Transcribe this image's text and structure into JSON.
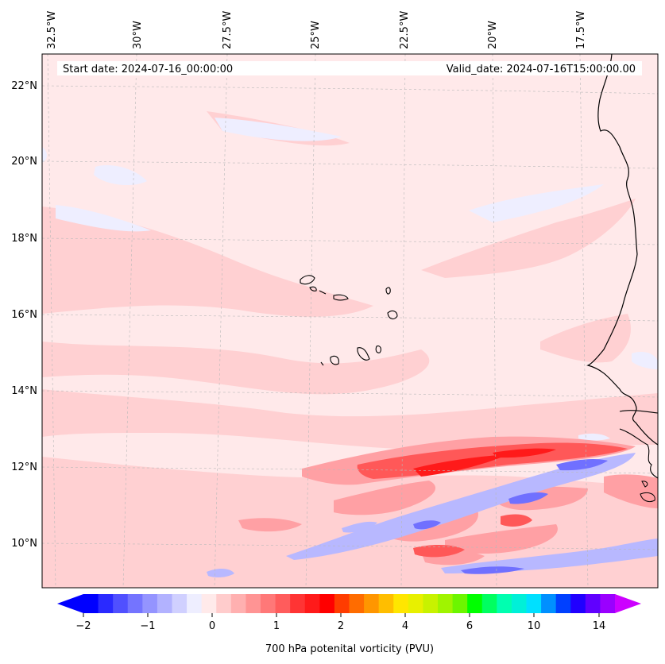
{
  "map": {
    "start_date_text": "Start date: 2024-07-16_00:00:00",
    "valid_date_text": "Valid_date: 2024-07-16T15:00:00.00",
    "top_lon_labels": [
      "32.5°W",
      "30°W",
      "27.5°W",
      "25°W",
      "22.5°W",
      "20°W",
      "17.5°W"
    ],
    "lat_labels": [
      "22°N",
      "20°N",
      "18°N",
      "16°N",
      "14°N",
      "12°N",
      "10°N"
    ]
  },
  "colorbar": {
    "label": "700 hPa potenital vorticity (PVU)",
    "tick_labels": [
      "−2",
      "−1",
      "0",
      "1",
      "2",
      "4",
      "6",
      "10",
      "14"
    ],
    "colors": [
      "#0000ff",
      "#2a2aff",
      "#5050ff",
      "#7474ff",
      "#9494ff",
      "#b2b2ff",
      "#d0d0ff",
      "#eeeeff",
      "#ffeaea",
      "#ffcccc",
      "#ffb0b0",
      "#ff9494",
      "#ff7878",
      "#ff5c5c",
      "#ff3434",
      "#ff1a1a",
      "#ff0000",
      "#ff3c00",
      "#ff6c00",
      "#ff9600",
      "#ffbe00",
      "#ffe600",
      "#e8f000",
      "#c8f200",
      "#a0f400",
      "#6cf600",
      "#00ff00",
      "#00ff60",
      "#00ffb0",
      "#00f0d8",
      "#00e0ff",
      "#0090ff",
      "#0040ff",
      "#2000ff",
      "#6000ff",
      "#9a00ff"
    ],
    "extend_low_color": "#0000ff",
    "extend_high_color": "#cc00ff"
  },
  "colors": {
    "background_field": "#ffe9ea",
    "weak_positive": "#ffd0d2",
    "moderate_positive": "#ffa0a4",
    "strong_positive": "#ff3838",
    "weak_negative": "#eeeeff",
    "moderate_negative": "#b8b8ff",
    "strong_negative": "#6a6aff"
  }
}
